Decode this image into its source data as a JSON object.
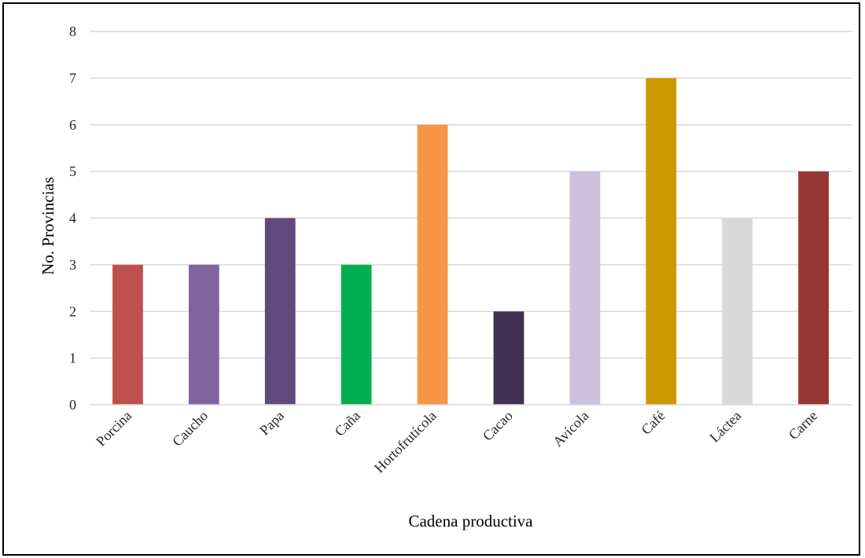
{
  "chart_data": {
    "type": "bar",
    "title": "",
    "xlabel": "Cadena productiva",
    "ylabel": "No. Provincias",
    "ylim": [
      0,
      8
    ],
    "yticks": [
      0,
      1,
      2,
      3,
      4,
      5,
      6,
      7,
      8
    ],
    "grid": true,
    "legend": "none",
    "categories": [
      "Porcina",
      "Caucho",
      "Papa",
      "Caña",
      "Hortofrutícola",
      "Cacao",
      "Avícola",
      "Café",
      "Láctea",
      "Carne"
    ],
    "values": [
      3,
      3,
      4,
      3,
      6,
      2,
      5,
      7,
      4,
      5
    ],
    "colors": [
      "#C0504D",
      "#8064A2",
      "#604A7B",
      "#00B050",
      "#F79646",
      "#403151",
      "#CCC1DA",
      "#CC9900",
      "#D9D9D9",
      "#953735"
    ]
  }
}
